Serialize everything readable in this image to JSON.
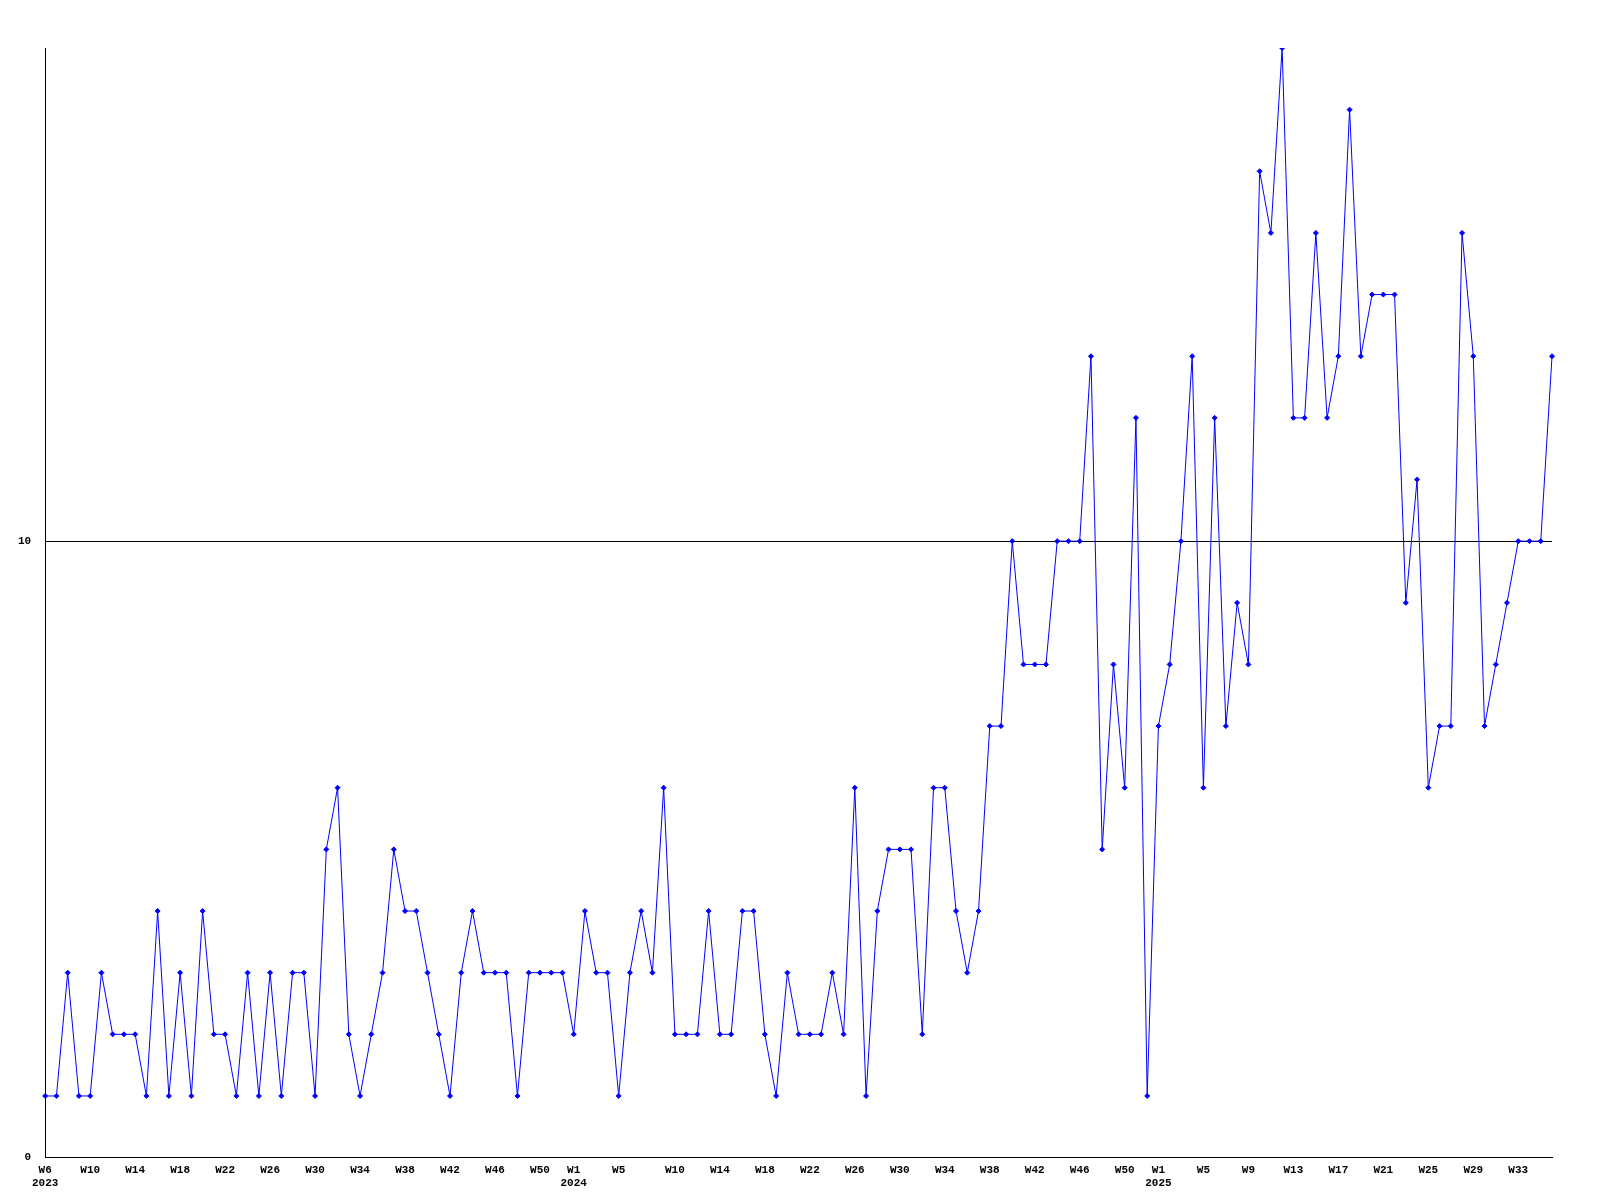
{
  "chart_data": {
    "type": "line",
    "categories": [
      "W6\n2023",
      null,
      null,
      null,
      "W10",
      null,
      null,
      null,
      "W14",
      null,
      null,
      null,
      "W18",
      null,
      null,
      null,
      "W22",
      null,
      null,
      null,
      "W26",
      null,
      null,
      null,
      "W30",
      null,
      null,
      null,
      "W34",
      null,
      null,
      null,
      "W38",
      null,
      null,
      null,
      "W42",
      null,
      null,
      null,
      "W46",
      null,
      null,
      null,
      "W50",
      null,
      null,
      "W1\n2024",
      null,
      null,
      null,
      "W5",
      null,
      null,
      null,
      null,
      "W10",
      null,
      null,
      null,
      "W14",
      null,
      null,
      null,
      "W18",
      null,
      null,
      null,
      "W22",
      null,
      null,
      null,
      "W26",
      null,
      null,
      null,
      "W30",
      null,
      null,
      null,
      "W34",
      null,
      null,
      null,
      "W38",
      null,
      null,
      null,
      "W42",
      null,
      null,
      null,
      "W46",
      null,
      null,
      null,
      "W50",
      null,
      null,
      "W1\n2025",
      null,
      null,
      null,
      "W5",
      null,
      null,
      null,
      "W9",
      null,
      null,
      null,
      "W13",
      null,
      null,
      null,
      "W17",
      null,
      null,
      null,
      "W21",
      null,
      null,
      null,
      "W25",
      null,
      null,
      null,
      "W29",
      null,
      null,
      null,
      "W33",
      null,
      null,
      null
    ],
    "series": [
      {
        "color": "#0000ff",
        "values": [
          1,
          1,
          3,
          1,
          1,
          3,
          2,
          2,
          2,
          1,
          4,
          1,
          3,
          1,
          4,
          2,
          2,
          1,
          3,
          1,
          3,
          1,
          3,
          3,
          1,
          5,
          6,
          2,
          1,
          2,
          3,
          5,
          4,
          4,
          3,
          2,
          1,
          3,
          4,
          3,
          3,
          3,
          1,
          3,
          3,
          3,
          3,
          2,
          4,
          3,
          3,
          1,
          3,
          4,
          3,
          6,
          2,
          2,
          2,
          4,
          2,
          2,
          4,
          4,
          2,
          1,
          3,
          2,
          2,
          2,
          3,
          2,
          6,
          1,
          4,
          5,
          5,
          5,
          2,
          6,
          6,
          4,
          3,
          4,
          7,
          7,
          10,
          8,
          8,
          8,
          10,
          10,
          10,
          13,
          5,
          8,
          6,
          12,
          1,
          7,
          8,
          10,
          13,
          6,
          12,
          7,
          9,
          8,
          16,
          15,
          18,
          12,
          12,
          15,
          12,
          13,
          17,
          13,
          14,
          14,
          14,
          9,
          11,
          6,
          7,
          7,
          15,
          13,
          7,
          8,
          9,
          10,
          10,
          10,
          13
        ]
      }
    ],
    "ylim": [
      0,
      18
    ],
    "yticks": [
      0,
      10
    ],
    "grid": "y",
    "legend": false,
    "marker": "diamond",
    "line_style": "solid"
  }
}
